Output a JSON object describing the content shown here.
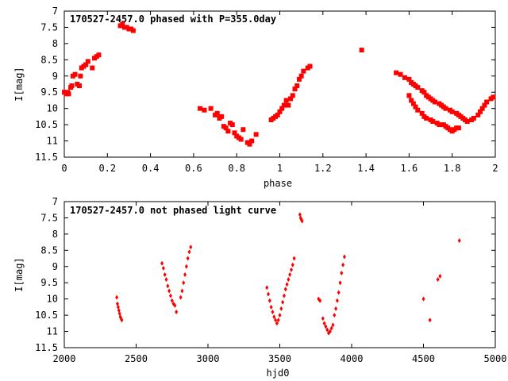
{
  "chart_data": [
    {
      "type": "scatter",
      "title": "170527-2457.0 phased with P=355.0day",
      "xlabel": "phase",
      "ylabel": "I[mag]",
      "xlim": [
        0,
        2
      ],
      "ylim": [
        11.5,
        7
      ],
      "y_inverted": true,
      "xticks": [
        "0",
        "0.2",
        "0.4",
        "0.6",
        "0.8",
        "1",
        "1.2",
        "1.4",
        "1.6",
        "1.8",
        "2"
      ],
      "yticks": [
        "7",
        "7.5",
        "8",
        "8.5",
        "9",
        "9.5",
        "10",
        "10.5",
        "11",
        "11.5"
      ],
      "marker_color": "#ff0000",
      "series": [
        {
          "x": [
            0.0,
            0.01,
            0.015,
            0.02,
            0.03,
            0.035,
            0.04,
            0.05,
            0.06,
            0.07,
            0.075,
            0.08,
            0.09,
            0.1,
            0.11,
            0.13,
            0.14,
            0.15,
            0.16,
            0.26,
            0.27,
            0.28,
            0.29,
            0.3,
            0.31,
            0.32,
            0.63,
            0.65,
            0.68,
            0.7,
            0.71,
            0.72,
            0.73,
            0.74,
            0.75,
            0.76,
            0.77,
            0.78,
            0.79,
            0.8,
            0.81,
            0.82,
            0.83,
            0.85,
            0.86,
            0.87,
            0.89,
            0.96,
            0.97,
            0.98,
            0.99,
            1.0,
            1.01,
            1.02,
            1.03,
            1.04,
            1.05,
            1.06,
            1.07,
            1.08,
            1.09,
            1.1,
            1.11,
            1.13,
            1.14,
            1.38,
            1.54,
            1.56,
            1.58,
            1.6,
            1.61,
            1.62,
            1.63,
            1.64,
            1.66,
            1.67,
            1.68,
            1.69,
            1.7,
            1.71,
            1.72,
            1.74,
            1.75,
            1.76,
            1.77,
            1.79,
            1.8,
            1.82,
            1.83,
            1.84,
            1.85,
            1.86,
            1.87,
            1.89,
            1.9,
            1.92,
            1.93,
            1.94,
            1.95,
            1.96,
            1.98,
            1.99,
            1.6,
            1.61,
            1.62,
            1.63,
            1.64,
            1.66,
            1.67,
            1.68,
            1.7,
            1.71,
            1.73,
            1.74,
            1.76,
            1.77,
            1.78,
            1.79,
            1.8,
            1.81,
            1.82,
            1.83
          ],
          "y": [
            9.5,
            9.55,
            9.5,
            9.55,
            9.35,
            9.3,
            9.0,
            8.95,
            9.25,
            9.3,
            9.0,
            8.75,
            8.7,
            8.65,
            8.55,
            8.75,
            8.45,
            8.4,
            8.35,
            7.45,
            7.4,
            7.5,
            7.5,
            7.55,
            7.55,
            7.6,
            10.0,
            10.05,
            10.0,
            10.2,
            10.15,
            10.3,
            10.25,
            10.55,
            10.6,
            10.7,
            10.45,
            10.5,
            10.75,
            10.85,
            10.9,
            10.95,
            10.65,
            11.05,
            11.1,
            11.0,
            10.8,
            10.35,
            10.3,
            10.25,
            10.2,
            10.1,
            10.0,
            9.9,
            9.75,
            9.9,
            9.7,
            9.6,
            9.4,
            9.3,
            9.1,
            9.0,
            8.85,
            8.75,
            8.7,
            8.2,
            8.9,
            8.95,
            9.05,
            9.1,
            9.2,
            9.25,
            9.3,
            9.35,
            9.45,
            9.5,
            9.6,
            9.65,
            9.7,
            9.75,
            9.8,
            9.85,
            9.9,
            9.95,
            10.0,
            10.05,
            10.1,
            10.15,
            10.2,
            10.25,
            10.3,
            10.35,
            10.4,
            10.35,
            10.3,
            10.2,
            10.1,
            10.0,
            9.9,
            9.8,
            9.7,
            9.65,
            9.6,
            9.75,
            9.85,
            9.95,
            10.05,
            10.15,
            10.25,
            10.3,
            10.35,
            10.4,
            10.45,
            10.5,
            10.5,
            10.55,
            10.6,
            10.65,
            10.7,
            10.65,
            10.6,
            10.6
          ]
        }
      ]
    },
    {
      "type": "scatter",
      "title": "170527-2457.0 not phased light curve",
      "xlabel": "hjd0",
      "ylabel": "I[mag]",
      "xlim": [
        2000,
        5000
      ],
      "ylim": [
        11.5,
        7
      ],
      "y_inverted": true,
      "xticks": [
        "2000",
        "2500",
        "3000",
        "3500",
        "4000",
        "4500",
        "5000"
      ],
      "yticks": [
        "7",
        "7.5",
        "8",
        "8.5",
        "9",
        "9.5",
        "10",
        "10.5",
        "11",
        "11.5"
      ],
      "marker_color": "#ff0000",
      "series": [
        {
          "x": [
            2365,
            2370,
            2375,
            2380,
            2385,
            2390,
            2395,
            2400,
            2680,
            2690,
            2700,
            2710,
            2720,
            2730,
            2740,
            2750,
            2760,
            2770,
            2780,
            2810,
            2820,
            2830,
            2840,
            2850,
            2860,
            2870,
            2880,
            3410,
            3420,
            3430,
            3440,
            3450,
            3460,
            3470,
            3480,
            3490,
            3500,
            3510,
            3520,
            3530,
            3540,
            3550,
            3560,
            3570,
            3580,
            3590,
            3600,
            3640,
            3645,
            3650,
            3655,
            3770,
            3780,
            3800,
            3810,
            3820,
            3830,
            3840,
            3850,
            3860,
            3870,
            3880,
            3890,
            3900,
            3910,
            3920,
            3930,
            3940,
            3950,
            4500,
            4545,
            4600,
            4615,
            4750
          ],
          "y": [
            9.95,
            10.15,
            10.25,
            10.35,
            10.45,
            10.55,
            10.6,
            10.65,
            8.9,
            9.05,
            9.25,
            9.4,
            9.6,
            9.75,
            9.9,
            10.05,
            10.15,
            10.2,
            10.4,
            9.95,
            9.75,
            9.5,
            9.25,
            9.0,
            8.75,
            8.55,
            8.4,
            9.65,
            9.85,
            10.05,
            10.25,
            10.4,
            10.55,
            10.65,
            10.75,
            10.65,
            10.5,
            10.3,
            10.1,
            9.9,
            9.7,
            9.55,
            9.4,
            9.25,
            9.1,
            8.95,
            8.75,
            7.4,
            7.5,
            7.55,
            7.6,
            10.0,
            10.05,
            10.6,
            10.75,
            10.85,
            10.95,
            11.05,
            11.0,
            10.9,
            10.8,
            10.5,
            10.3,
            10.05,
            9.8,
            9.5,
            9.2,
            8.95,
            8.7,
            10.0,
            10.65,
            9.4,
            9.3,
            8.2
          ]
        }
      ]
    }
  ]
}
